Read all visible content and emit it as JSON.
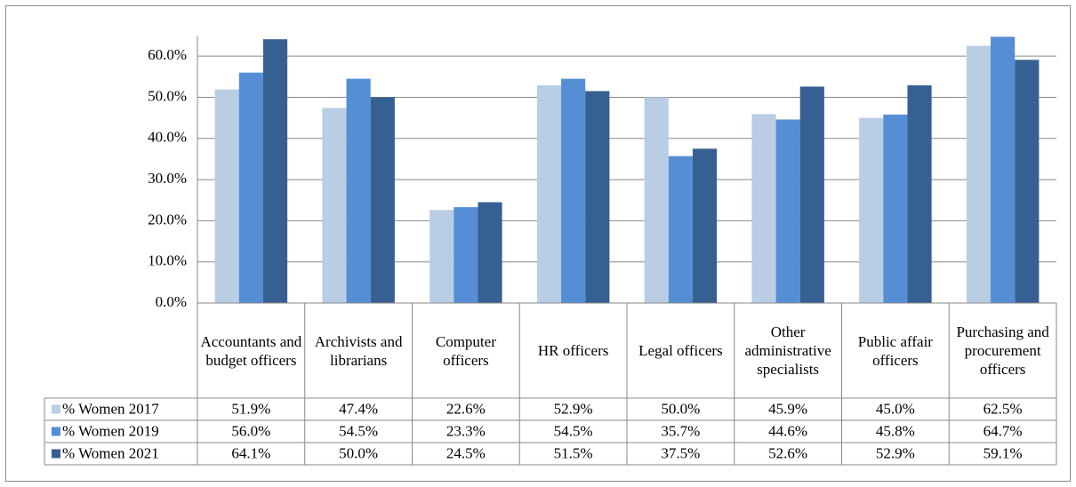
{
  "chart_data": {
    "type": "bar",
    "categories": [
      "Accountants and budget officers",
      "Archivists and librarians",
      "Computer officers",
      "HR officers",
      "Legal officers",
      "Other administrative specialists",
      "Public affair officers",
      "Purchasing and procurement officers"
    ],
    "series": [
      {
        "name": "% Women 2017",
        "color": "#b9cde5",
        "values": [
          51.9,
          47.4,
          22.6,
          52.9,
          50.0,
          45.9,
          45.0,
          62.5
        ],
        "value_labels": [
          "51.9%",
          "47.4%",
          "22.6%",
          "52.9%",
          "50.0%",
          "45.9%",
          "45.0%",
          "62.5%"
        ]
      },
      {
        "name": "% Women 2019",
        "color": "#558ed5",
        "values": [
          56.0,
          54.5,
          23.3,
          54.5,
          35.7,
          44.6,
          45.8,
          64.7
        ],
        "value_labels": [
          "56.0%",
          "54.5%",
          "23.3%",
          "54.5%",
          "35.7%",
          "44.6%",
          "45.8%",
          "64.7%"
        ]
      },
      {
        "name": "% Women 2021",
        "color": "#376092",
        "values": [
          64.1,
          50.0,
          24.5,
          51.5,
          37.5,
          52.6,
          52.9,
          59.1
        ],
        "value_labels": [
          "64.1%",
          "50.0%",
          "24.5%",
          "51.5%",
          "37.5%",
          "52.6%",
          "52.9%",
          "59.1%"
        ]
      }
    ],
    "ylim": [
      0,
      65
    ],
    "yticks": [
      {
        "value": 0,
        "label": "0.0%"
      },
      {
        "value": 10,
        "label": "10.0%"
      },
      {
        "value": 20,
        "label": "20.0%"
      },
      {
        "value": 30,
        "label": "30.0%"
      },
      {
        "value": 40,
        "label": "40.0%"
      },
      {
        "value": 50,
        "label": "50.0%"
      },
      {
        "value": 60,
        "label": "60.0%"
      }
    ],
    "grid": true
  }
}
